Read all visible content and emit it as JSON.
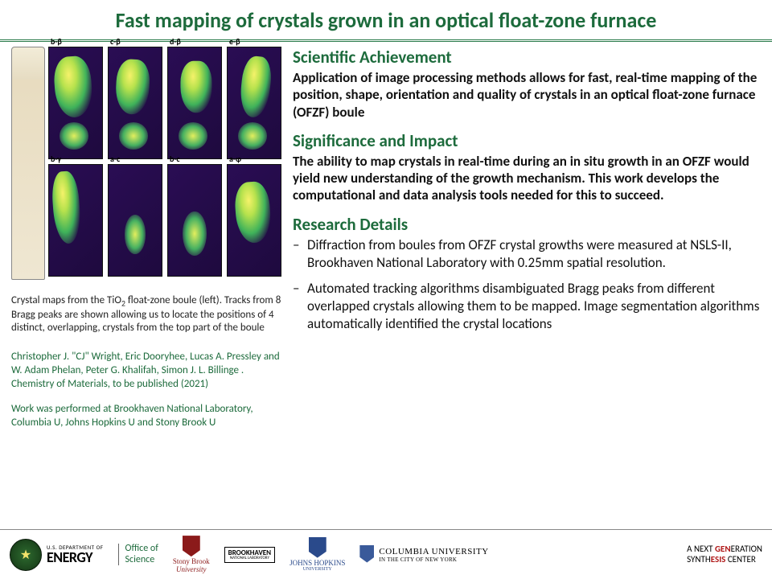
{
  "title": "Fast mapping of crystals grown in an optical float-zone furnace",
  "panel_labels": [
    "b-β",
    "c-β",
    "d-β",
    "e-β",
    "b-γ",
    "a-c",
    "b-c",
    "a-φ"
  ],
  "caption_html": "Crystal maps from the TiO<sub>2</sub> float-zone boule (left). Tracks from 8 Bragg peaks are shown allowing us to locate the positions of 4 distinct, overlapping, crystals from the top part of the boule",
  "citation1": "Christopher J. \"CJ\" Wright, Eric Dooryhee, Lucas A. Pressley and W. Adam Phelan, Peter G. Khalifah, Simon J. L. Billinge . Chemistry of Materials, to be published  (2021)",
  "citation2": "Work was performed at Brookhaven National Laboratory, Columbia U, Johns Hopkins U and Stony Brook U",
  "sections": {
    "achievement_h": "Scientific Achievement",
    "achievement_p": "Application of image processing methods allows for fast, real-time mapping of the position, shape, orientation and quality of crystals in an optical float-zone furnace (OFZF) boule",
    "impact_h": "Significance and Impact",
    "impact_p": "The ability to map crystals in real-time during an in situ growth in an OFZF would yield new understanding of the growth mechanism. This work develops the computational and data analysis tools needed for this to succeed.",
    "details_h": "Research Details",
    "details": [
      "Diffraction from boules from OFZF crystal growths were measured at NSLS-II, Brookhaven National Laboratory with 0.25mm spatial resolution.",
      "Automated tracking algorithms disambiguated Bragg peaks from different overlapped crystals allowing them to be mapped. Image segmentation algorithms automatically identified the crystal locations"
    ]
  },
  "footer": {
    "doe_small": "U.S. DEPARTMENT OF",
    "doe_big": "ENERGY",
    "office1": "Office of",
    "office2": "Science",
    "sbu1": "Stony Brook",
    "sbu2": "University",
    "bnl1": "BROOKHAVEN",
    "bnl2": "NATIONAL LABORATORY",
    "jhu1": "JOHNS HOPKINS",
    "jhu2": "UNIVERSITY",
    "col1": "COLUMBIA UNIVERSITY",
    "col2": "IN THE CITY OF NEW YORK",
    "tag_pre": "A NEXT ",
    "tag_gen": "GEN",
    "tag_eration": "ERATION",
    "tag_synth": "SYNTH",
    "tag_esis": "ESIS",
    "tag_center": " CENTER"
  },
  "colors": {
    "heading_green": "#1d6b3c",
    "panel_bg_dark": "#2a0d54",
    "blob_yellow": "#f5f26a",
    "blob_green": "#3fb25a",
    "tag_red": "#b01818"
  }
}
